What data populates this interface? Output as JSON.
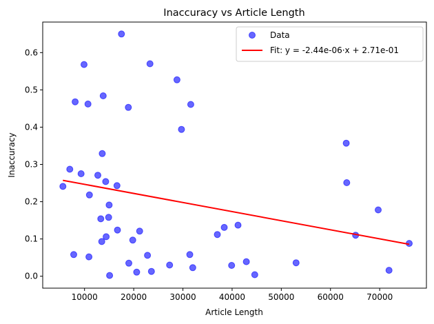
{
  "chart_data": {
    "type": "scatter",
    "title": "Inaccuracy vs Article Length",
    "xlabel": "Article Length",
    "ylabel": "Inaccuracy",
    "xlim": [
      1500,
      79500
    ],
    "ylim": [
      -0.032,
      0.682
    ],
    "xticks": [
      10000,
      20000,
      30000,
      40000,
      50000,
      60000,
      70000
    ],
    "xtick_labels": [
      "10000",
      "20000",
      "30000",
      "40000",
      "50000",
      "60000",
      "70000"
    ],
    "yticks": [
      0.0,
      0.1,
      0.2,
      0.3,
      0.4,
      0.5,
      0.6
    ],
    "ytick_labels": [
      "0.0",
      "0.1",
      "0.2",
      "0.3",
      "0.4",
      "0.5",
      "0.6"
    ],
    "grid": false,
    "legend_position": "top-right",
    "series": [
      {
        "name": "Data",
        "kind": "scatter",
        "color": "#0000ff",
        "points": [
          [
            5600,
            0.241
          ],
          [
            7000,
            0.287
          ],
          [
            7800,
            0.058
          ],
          [
            8100,
            0.468
          ],
          [
            9300,
            0.275
          ],
          [
            9900,
            0.568
          ],
          [
            10700,
            0.462
          ],
          [
            10900,
            0.052
          ],
          [
            11000,
            0.218
          ],
          [
            12700,
            0.271
          ],
          [
            13300,
            0.154
          ],
          [
            13500,
            0.093
          ],
          [
            13600,
            0.329
          ],
          [
            13800,
            0.484
          ],
          [
            14300,
            0.254
          ],
          [
            14400,
            0.106
          ],
          [
            14900,
            0.158
          ],
          [
            15000,
            0.191
          ],
          [
            15100,
            0.002
          ],
          [
            16600,
            0.243
          ],
          [
            16700,
            0.124
          ],
          [
            17500,
            0.65
          ],
          [
            18900,
            0.453
          ],
          [
            19000,
            0.035
          ],
          [
            19800,
            0.097
          ],
          [
            20600,
            0.011
          ],
          [
            21200,
            0.121
          ],
          [
            22800,
            0.056
          ],
          [
            23300,
            0.57
          ],
          [
            23600,
            0.013
          ],
          [
            27300,
            0.03
          ],
          [
            28800,
            0.527
          ],
          [
            29700,
            0.394
          ],
          [
            31400,
            0.058
          ],
          [
            31600,
            0.461
          ],
          [
            32000,
            0.023
          ],
          [
            37000,
            0.112
          ],
          [
            38400,
            0.131
          ],
          [
            39900,
            0.029
          ],
          [
            41200,
            0.137
          ],
          [
            42900,
            0.039
          ],
          [
            44600,
            0.004
          ],
          [
            53000,
            0.036
          ],
          [
            63200,
            0.357
          ],
          [
            63300,
            0.251
          ],
          [
            65100,
            0.11
          ],
          [
            69700,
            0.178
          ],
          [
            71900,
            0.016
          ],
          [
            76000,
            0.088
          ]
        ]
      },
      {
        "name": "Fit: y = -2.44e-06·x + 2.71e-01",
        "kind": "line",
        "color": "#ff0000",
        "slope": -2.44e-06,
        "intercept": 0.271,
        "x_range": [
          5600,
          76000
        ]
      }
    ]
  }
}
